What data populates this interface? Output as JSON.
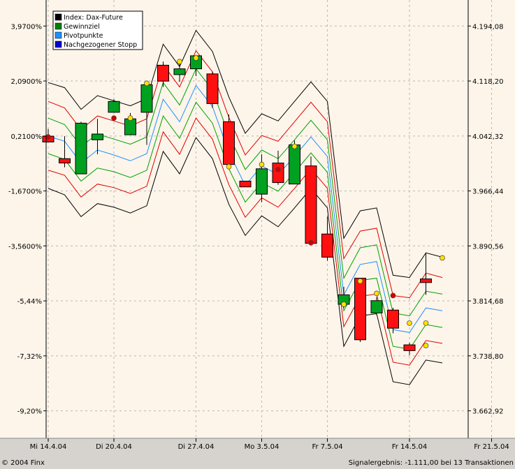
{
  "footer": {
    "copyright": "© 2004 Finx",
    "signal": "Signalergebnis: -1.111,00 bei 13 Transaktionen"
  },
  "chart_data": {
    "type": "candlestick",
    "legend": [
      {
        "name": "Index: Dax-Future",
        "color": "#000000"
      },
      {
        "name": "Gewinnziel",
        "color": "#008000"
      },
      {
        "name": "Pivotpunkte",
        "color": "#1e90ff"
      },
      {
        "name": "Nachgezogener Stopp",
        "color": "#0000cd"
      }
    ],
    "legend_position": "top-left",
    "y_left_ticks": [
      "3,9700%",
      "2,0900%",
      "0,2100%",
      "-1,6700%",
      "-3,5600%",
      "-5,44%",
      "-7,32%",
      "-9,20%"
    ],
    "y_right_ticks": [
      4194.08,
      4118.2,
      4042.32,
      3966.44,
      3890.56,
      3814.68,
      3738.8,
      3662.92
    ],
    "y_right_tick_labels": [
      "4.194,08",
      "4.118,20",
      "4.042,32",
      "3.966,44",
      "3.890,56",
      "3.814,68",
      "3.738,80",
      "3.662,92"
    ],
    "x_tick_labels": [
      {
        "label": "Mi 14.4.04",
        "index": 0
      },
      {
        "label": "Di 20.4.04",
        "index": 4
      },
      {
        "label": "Di 27.4.04",
        "index": 9
      },
      {
        "label": "Mo 3.5.04",
        "index": 13
      },
      {
        "label": "Fr 7.5.04",
        "index": 17
      },
      {
        "label": "Fr 14.5.04",
        "index": 22
      },
      {
        "label": "Fr 21.5.04",
        "index": 27
      }
    ],
    "grid": true,
    "candles": [
      {
        "o": 4042,
        "h": 4052,
        "l": 4034,
        "c": 4034
      },
      {
        "o": 4011,
        "h": 4042,
        "l": 3999,
        "c": 4005
      },
      {
        "o": 3990,
        "h": 4062,
        "l": 3990,
        "c": 4060
      },
      {
        "o": 4037,
        "h": 4066,
        "l": 4017,
        "c": 4045
      },
      {
        "o": 4075,
        "h": 4093,
        "l": 4075,
        "c": 4090
      },
      {
        "o": 4044,
        "h": 4074,
        "l": 4044,
        "c": 4066
      },
      {
        "o": 4075,
        "h": 4115,
        "l": 4030,
        "c": 4113
      },
      {
        "o": 4140,
        "h": 4145,
        "l": 4110,
        "c": 4118
      },
      {
        "o": 4127,
        "h": 4145,
        "l": 4117,
        "c": 4135
      },
      {
        "o": 4135,
        "h": 4153,
        "l": 4125,
        "c": 4153
      },
      {
        "o": 4128,
        "h": 4131,
        "l": 4081,
        "c": 4087
      },
      {
        "o": 4062,
        "h": 4072,
        "l": 3998,
        "c": 4003
      },
      {
        "o": 3980,
        "h": 3980,
        "l": 3972,
        "c": 3972
      },
      {
        "o": 3962,
        "h": 4017,
        "l": 3951,
        "c": 3997
      },
      {
        "o": 4005,
        "h": 4022,
        "l": 3975,
        "c": 3978
      },
      {
        "o": 3976,
        "h": 4036,
        "l": 3976,
        "c": 4030
      },
      {
        "o": 4001,
        "h": 4014,
        "l": 3893,
        "c": 3894
      },
      {
        "o": 3907,
        "h": 3931,
        "l": 3870,
        "c": 3875
      },
      {
        "o": 3810,
        "h": 3834,
        "l": 3805,
        "c": 3823
      },
      {
        "o": 3846,
        "h": 3846,
        "l": 3758,
        "c": 3761
      },
      {
        "o": 3798,
        "h": 3820,
        "l": 3795,
        "c": 3815
      },
      {
        "o": 3802,
        "h": 3805,
        "l": 3770,
        "c": 3777
      },
      {
        "o": 3754,
        "h": 3757,
        "l": 3740,
        "c": 3746
      },
      {
        "o": 3845,
        "h": 3880,
        "l": 3823,
        "c": 3840
      }
    ],
    "dots": [
      {
        "i": 0,
        "v": 4041,
        "color": "#d00000"
      },
      {
        "i": 4,
        "v": 4067,
        "color": "#d00000"
      },
      {
        "i": 5,
        "v": 4067,
        "color": "#ffe000"
      },
      {
        "i": 6,
        "v": 4115,
        "color": "#ffe000"
      },
      {
        "i": 8,
        "v": 4145,
        "color": "#ffe000"
      },
      {
        "i": 9,
        "v": 4150,
        "color": "#ffe000"
      },
      {
        "i": 11,
        "v": 4000,
        "color": "#ffe000"
      },
      {
        "i": 13,
        "v": 4003,
        "color": "#ffe000"
      },
      {
        "i": 14,
        "v": 3996,
        "color": "#d00000"
      },
      {
        "i": 15,
        "v": 4028,
        "color": "#ffe000"
      },
      {
        "i": 16,
        "v": 3895,
        "color": "#d00000"
      },
      {
        "i": 18,
        "v": 3810,
        "color": "#ffe000"
      },
      {
        "i": 19,
        "v": 3842,
        "color": "#ffe000"
      },
      {
        "i": 20,
        "v": 3825,
        "color": "#ffe000"
      },
      {
        "i": 21,
        "v": 3822,
        "color": "#d00000"
      },
      {
        "i": 22,
        "v": 3784,
        "color": "#ffe000"
      },
      {
        "i": 23,
        "v": 3753,
        "color": "#ffe000"
      },
      {
        "i": 23,
        "v": 3784,
        "color": "#ffe000"
      },
      {
        "i": 24,
        "v": 3874,
        "color": "#ffe000"
      }
    ],
    "bands": {
      "black_upper": [
        4116,
        4109,
        4079,
        4098,
        4091,
        4084,
        4094,
        4169,
        4138,
        4188,
        4159,
        4096,
        4046,
        4073,
        4063,
        4090,
        4117,
        4090,
        3901,
        3939,
        3943,
        3850,
        3847,
        3881,
        3875
      ],
      "red_upper": [
        4090,
        4081,
        4051,
        4070,
        4063,
        4056,
        4066,
        4141,
        4110,
        4160,
        4131,
        4068,
        4016,
        4043,
        4035,
        4062,
        4089,
        4062,
        3873,
        3911,
        3915,
        3822,
        3819,
        3853,
        3847
      ],
      "green_upper": [
        4067,
        4058,
        4028,
        4045,
        4038,
        4031,
        4041,
        4116,
        4085,
        4135,
        4106,
        4043,
        3996,
        4023,
        4011,
        4037,
        4064,
        4037,
        3846,
        3888,
        3892,
        3798,
        3794,
        3828,
        3824
      ],
      "blue_pivot": [
        4042,
        4035,
        4005,
        4023,
        4016,
        4008,
        4018,
        4093,
        4062,
        4112,
        4083,
        4020,
        3974,
        4001,
        3989,
        4014,
        4041,
        4014,
        3823,
        3865,
        3869,
        3775,
        3771,
        3805,
        3801
      ],
      "green_lower": [
        4018,
        4010,
        3980,
        3998,
        3993,
        3985,
        3995,
        4070,
        4039,
        4089,
        4060,
        3997,
        3951,
        3978,
        3966,
        3992,
        4019,
        3992,
        3801,
        3843,
        3846,
        3752,
        3748,
        3782,
        3778
      ],
      "red_lower": [
        3995,
        3988,
        3958,
        3976,
        3971,
        3963,
        3973,
        4048,
        4017,
        4067,
        4038,
        3975,
        3930,
        3957,
        3944,
        3970,
        3997,
        3970,
        3779,
        3821,
        3824,
        3730,
        3726,
        3760,
        3756
      ],
      "black_lower": [
        3970,
        3961,
        3931,
        3949,
        3944,
        3936,
        3946,
        4021,
        3990,
        4040,
        4011,
        3948,
        3905,
        3932,
        3917,
        3943,
        3970,
        3943,
        3752,
        3794,
        3797,
        3703,
        3699,
        3733,
        3729
      ]
    },
    "ylim": [
      3625,
      4230
    ]
  }
}
